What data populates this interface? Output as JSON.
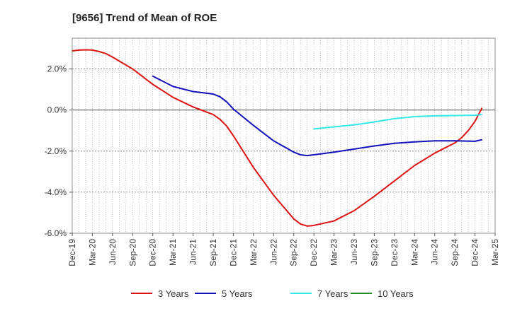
{
  "chart_data": {
    "type": "line",
    "title": "[9656]  Trend of Mean of ROE",
    "xlabel": "",
    "ylabel": "",
    "x_ticks": [
      "Dec-19",
      "Mar-20",
      "Jun-20",
      "Sep-20",
      "Dec-20",
      "Mar-21",
      "Jun-21",
      "Sep-21",
      "Dec-21",
      "Mar-22",
      "Jun-22",
      "Sep-22",
      "Dec-22",
      "Mar-23",
      "Jun-23",
      "Sep-23",
      "Dec-23",
      "Mar-24",
      "Jun-24",
      "Sep-24",
      "Dec-24",
      "Mar-25"
    ],
    "y_ticks": [
      2.0,
      0.0,
      -2.0,
      -4.0,
      -6.0
    ],
    "y_tick_labels": [
      "2.0%",
      "0.0%",
      "-2.0%",
      "-4.0%",
      "-6.0%"
    ],
    "ylim": [
      -6.0,
      3.5
    ],
    "grid": true,
    "legend_position": "bottom",
    "series": [
      {
        "name": "3 Years",
        "color": "#dd1111",
        "points": [
          [
            "Dec-19",
            2.88
          ],
          [
            "Jan-20",
            2.92
          ],
          [
            "Feb-20",
            2.93
          ],
          [
            "Mar-20",
            2.92
          ],
          [
            "Apr-20",
            2.85
          ],
          [
            "May-20",
            2.75
          ],
          [
            "Jun-20",
            2.58
          ],
          [
            "Sep-20",
            2.0
          ],
          [
            "Dec-20",
            1.25
          ],
          [
            "Mar-21",
            0.62
          ],
          [
            "Jun-21",
            0.15
          ],
          [
            "Sep-21",
            -0.22
          ],
          [
            "Oct-21",
            -0.45
          ],
          [
            "Nov-21",
            -0.78
          ],
          [
            "Dec-21",
            -1.25
          ],
          [
            "Mar-22",
            -2.8
          ],
          [
            "Jun-22",
            -4.15
          ],
          [
            "Sep-22",
            -5.3
          ],
          [
            "Oct-22",
            -5.55
          ],
          [
            "Nov-22",
            -5.65
          ],
          [
            "Dec-22",
            -5.62
          ],
          [
            "Mar-23",
            -5.4
          ],
          [
            "Jun-23",
            -4.9
          ],
          [
            "Sep-23",
            -4.2
          ],
          [
            "Dec-23",
            -3.45
          ],
          [
            "Mar-24",
            -2.7
          ],
          [
            "Jun-24",
            -2.1
          ],
          [
            "Sep-24",
            -1.6
          ],
          [
            "Oct-24",
            -1.35
          ],
          [
            "Nov-24",
            -1.0
          ],
          [
            "Dec-24",
            -0.55
          ],
          [
            "Jan-25",
            0.08
          ]
        ]
      },
      {
        "name": "5 Years",
        "color": "#1111bb",
        "points": [
          [
            "Dec-20",
            1.65
          ],
          [
            "Mar-21",
            1.15
          ],
          [
            "Jun-21",
            0.9
          ],
          [
            "Sep-21",
            0.78
          ],
          [
            "Oct-21",
            0.65
          ],
          [
            "Nov-21",
            0.4
          ],
          [
            "Dec-21",
            0.05
          ],
          [
            "Mar-22",
            -0.75
          ],
          [
            "Jun-22",
            -1.5
          ],
          [
            "Sep-22",
            -2.05
          ],
          [
            "Oct-22",
            -2.18
          ],
          [
            "Nov-22",
            -2.22
          ],
          [
            "Dec-22",
            -2.18
          ],
          [
            "Mar-23",
            -2.05
          ],
          [
            "Jun-23",
            -1.9
          ],
          [
            "Sep-23",
            -1.75
          ],
          [
            "Dec-23",
            -1.62
          ],
          [
            "Mar-24",
            -1.55
          ],
          [
            "Jun-24",
            -1.5
          ],
          [
            "Sep-24",
            -1.5
          ],
          [
            "Dec-24",
            -1.52
          ],
          [
            "Jan-25",
            -1.45
          ]
        ]
      },
      {
        "name": "7 Years",
        "color": "#33e8e8",
        "points": [
          [
            "Dec-22",
            -0.92
          ],
          [
            "Mar-23",
            -0.82
          ],
          [
            "Jun-23",
            -0.72
          ],
          [
            "Sep-23",
            -0.58
          ],
          [
            "Dec-23",
            -0.42
          ],
          [
            "Mar-24",
            -0.32
          ],
          [
            "Jun-24",
            -0.28
          ],
          [
            "Sep-24",
            -0.27
          ],
          [
            "Dec-24",
            -0.25
          ],
          [
            "Jan-25",
            -0.22
          ]
        ]
      },
      {
        "name": "10 Years",
        "color": "#228b22",
        "points": []
      }
    ]
  }
}
